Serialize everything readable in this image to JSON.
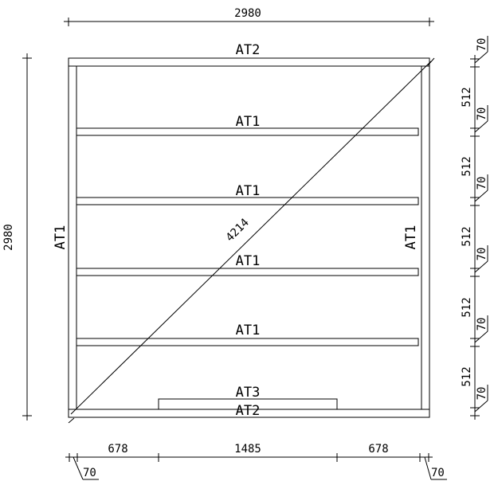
{
  "labels": {
    "top_plate": "AT2",
    "bottom_plate": "AT2",
    "left_stud": "AT1",
    "right_stud": "AT1",
    "noggin_1": "AT1",
    "noggin_2": "AT1",
    "noggin_3": "AT1",
    "noggin_4": "AT1",
    "sill": "AT3",
    "diagonal": "4214"
  },
  "dimensions": {
    "overall_width": "2980",
    "overall_height": "2980",
    "bottom_segments": [
      "678",
      "1485",
      "678"
    ],
    "bottom_left_stud": "70",
    "bottom_right_stud": "70",
    "right_plate_thicknesses": [
      "70",
      "70",
      "70",
      "70",
      "70",
      "70"
    ],
    "right_spacings": [
      "512",
      "512",
      "512",
      "512",
      "512"
    ]
  }
}
